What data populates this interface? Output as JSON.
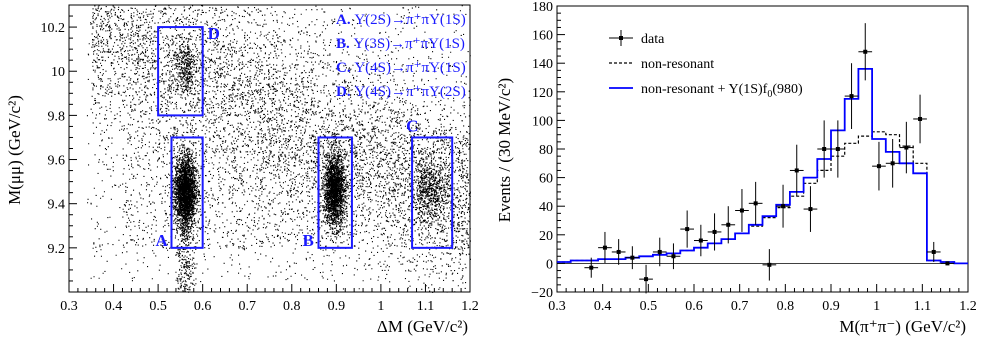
{
  "chart_data": [
    {
      "type": "scatter",
      "xlabel": "ΔM (GeV/c²)",
      "ylabel": "M(μμ) (GeV/c²)",
      "xlim": [
        0.3,
        1.2
      ],
      "ylim": [
        9.0,
        10.3
      ],
      "xticks": [
        "0.3",
        "0.4",
        "0.5",
        "0.6",
        "0.7",
        "0.8",
        "0.9",
        "1",
        "1.1",
        "1.2"
      ],
      "yticks": [
        "9.2",
        "9.4",
        "9.6",
        "9.8",
        "10",
        "10.2"
      ],
      "clusters": [
        {
          "name": "A",
          "x": 0.56,
          "y": 9.46
        },
        {
          "name": "B",
          "x": 0.895,
          "y": 9.46
        },
        {
          "name": "C",
          "x": 1.11,
          "y": 9.46
        },
        {
          "name": "D",
          "x": 0.56,
          "y": 10.02
        }
      ],
      "boxes": [
        {
          "label": "A",
          "x0": 0.53,
          "x1": 0.6,
          "y0": 9.2,
          "y1": 9.7
        },
        {
          "label": "B",
          "x0": 0.86,
          "x1": 0.935,
          "y0": 9.2,
          "y1": 9.7
        },
        {
          "label": "C",
          "x0": 1.07,
          "x1": 1.16,
          "y0": 9.2,
          "y1": 9.7
        },
        {
          "label": "D",
          "x0": 0.5,
          "x1": 0.6,
          "y0": 9.8,
          "y1": 10.2
        }
      ],
      "annotations": [
        {
          "tag": "A.",
          "text": "Υ(2S)→π⁺πΥ(1S)"
        },
        {
          "tag": "B.",
          "text": "Υ(3S)→π⁺πΥ(1S)"
        },
        {
          "tag": "C.",
          "text": "Υ(4S)→π⁺πΥ(1S)"
        },
        {
          "tag": "D.",
          "text": "Υ(4S)→π⁺πΥ(2S)"
        }
      ]
    },
    {
      "type": "line",
      "xlabel": "M(π⁺π⁻) (GeV/c²)",
      "ylabel": "Events / (30 MeV/c²)",
      "xlim": [
        0.3,
        1.2
      ],
      "ylim": [
        -20,
        180
      ],
      "xticks": [
        "0.3",
        "0.4",
        "0.5",
        "0.6",
        "0.7",
        "0.8",
        "0.9",
        "1",
        "1.1",
        "1.2"
      ],
      "yticks": [
        "−20",
        "0",
        "20",
        "40",
        "60",
        "80",
        "100",
        "120",
        "140",
        "160",
        "180"
      ],
      "bin_edges": [
        0.3,
        0.33,
        0.36,
        0.39,
        0.42,
        0.45,
        0.48,
        0.51,
        0.54,
        0.57,
        0.6,
        0.63,
        0.66,
        0.69,
        0.72,
        0.75,
        0.78,
        0.81,
        0.84,
        0.87,
        0.9,
        0.93,
        0.96,
        0.99,
        1.02,
        1.05,
        1.08,
        1.11,
        1.14,
        1.17,
        1.2
      ],
      "series": [
        {
          "name": "data",
          "x": [
            0.375,
            0.405,
            0.435,
            0.465,
            0.495,
            0.525,
            0.555,
            0.585,
            0.615,
            0.645,
            0.675,
            0.705,
            0.735,
            0.765,
            0.795,
            0.825,
            0.855,
            0.885,
            0.915,
            0.945,
            0.975,
            1.005,
            1.035,
            1.065,
            1.095,
            1.125,
            1.155
          ],
          "y": [
            -3,
            11,
            8,
            4,
            -11,
            8,
            5,
            24,
            16,
            22,
            27,
            37,
            42,
            -1,
            40,
            65,
            38,
            80,
            80,
            117,
            148,
            68,
            70,
            81,
            101,
            8,
            0
          ],
          "err": [
            7,
            11,
            9,
            8,
            10,
            10,
            9,
            13,
            11,
            13,
            13,
            15,
            15,
            11,
            15,
            18,
            16,
            20,
            20,
            23,
            20,
            17,
            17,
            18,
            17,
            7,
            1
          ]
        },
        {
          "name": "non-resonant",
          "values": [
            1,
            2,
            2,
            3,
            3,
            4,
            5,
            6,
            7,
            9,
            11,
            14,
            17,
            21,
            26,
            32,
            39,
            47,
            56,
            65,
            75,
            84,
            89,
            92,
            90,
            82,
            70,
            2,
            1,
            0
          ]
        },
        {
          "name": "non-resonant + Y(1S)f₀(980)",
          "values": [
            1,
            2,
            2,
            3,
            3,
            4,
            5,
            6,
            7,
            9,
            11,
            14,
            17,
            21,
            27,
            33,
            41,
            50,
            60,
            73,
            93,
            115,
            136,
            87,
            78,
            70,
            63,
            2,
            1,
            0
          ]
        }
      ],
      "legend": [
        {
          "label": "data",
          "style": "marker",
          "color": "#000000"
        },
        {
          "label": "non-resonant",
          "style": "dashed",
          "color": "#000000"
        },
        {
          "label": "non-resonant + Y(1S)f",
          "sub": "0",
          "tail": "(980)",
          "style": "solid",
          "color": "#0000ff"
        }
      ],
      "legend_position": "top-left"
    }
  ]
}
